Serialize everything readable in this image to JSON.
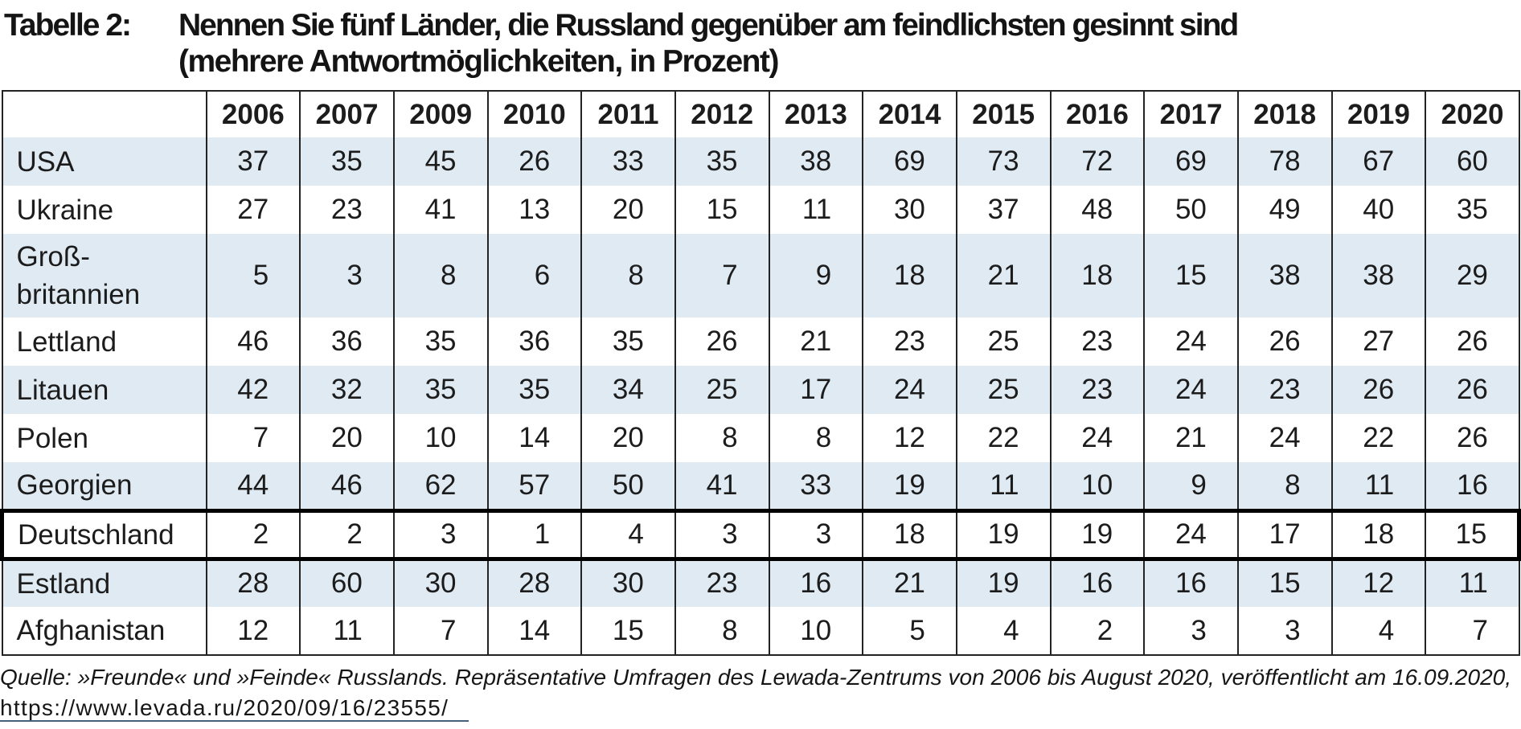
{
  "caption": {
    "label": "Tabelle 2:",
    "line1": "Nennen Sie fünf Länder, die Russland gegenüber am feindlichsten gesinnt sind",
    "line2": "(mehrere Antwortmöglichkeiten, in Prozent)"
  },
  "source": {
    "text": "Quelle: »Freunde« und »Feinde« Russlands. Repräsentative Umfragen des Lewada-Zentrums von 2006 bis August 2020, veröffentlicht am 16.09.2020,",
    "url": "https://www.levada.ru/2020/09/16/23555/"
  },
  "colors": {
    "row_shading": "#dfeaf3",
    "grid_line": "#232323",
    "highlight_border": "#000000",
    "link_underline": "#44607a",
    "text": "#1a1a1a"
  },
  "chart_data": {
    "type": "table",
    "title": "Tabelle 2: Nennen Sie fünf Länder, die Russland gegenüber am feindlichsten gesinnt sind (mehrere Antwortmöglichkeiten, in Prozent)",
    "unit": "Prozent",
    "columns": [
      "2006",
      "2007",
      "2009",
      "2010",
      "2011",
      "2012",
      "2013",
      "2014",
      "2015",
      "2016",
      "2017",
      "2018",
      "2019",
      "2020"
    ],
    "rows": [
      {
        "label": "USA",
        "values": [
          37,
          35,
          45,
          26,
          33,
          35,
          38,
          69,
          73,
          72,
          69,
          78,
          67,
          60
        ],
        "highlighted": false
      },
      {
        "label": "Ukraine",
        "values": [
          27,
          23,
          41,
          13,
          20,
          15,
          11,
          30,
          37,
          48,
          50,
          49,
          40,
          35
        ],
        "highlighted": false
      },
      {
        "label": "Groß-\nbritannien",
        "values": [
          5,
          3,
          8,
          6,
          8,
          7,
          9,
          18,
          21,
          18,
          15,
          38,
          38,
          29
        ],
        "highlighted": false
      },
      {
        "label": "Lettland",
        "values": [
          46,
          36,
          35,
          36,
          35,
          26,
          21,
          23,
          25,
          23,
          24,
          26,
          27,
          26
        ],
        "highlighted": false
      },
      {
        "label": "Litauen",
        "values": [
          42,
          32,
          35,
          35,
          34,
          25,
          17,
          24,
          25,
          23,
          24,
          23,
          26,
          26
        ],
        "highlighted": false
      },
      {
        "label": "Polen",
        "values": [
          7,
          20,
          10,
          14,
          20,
          8,
          8,
          12,
          22,
          24,
          21,
          24,
          22,
          26
        ],
        "highlighted": false
      },
      {
        "label": "Georgien",
        "values": [
          44,
          46,
          62,
          57,
          50,
          41,
          33,
          19,
          11,
          10,
          9,
          8,
          11,
          16
        ],
        "highlighted": false
      },
      {
        "label": "Deutschland",
        "values": [
          2,
          2,
          3,
          1,
          4,
          3,
          3,
          18,
          19,
          19,
          24,
          17,
          18,
          15
        ],
        "highlighted": true
      },
      {
        "label": "Estland",
        "values": [
          28,
          60,
          30,
          28,
          30,
          23,
          16,
          21,
          19,
          16,
          16,
          15,
          12,
          11
        ],
        "highlighted": false
      },
      {
        "label": "Afghanistan",
        "values": [
          12,
          11,
          7,
          14,
          15,
          8,
          10,
          5,
          4,
          2,
          3,
          3,
          4,
          7
        ],
        "highlighted": false
      }
    ],
    "source": "Quelle: »Freunde« und »Feinde« Russlands. Repräsentative Umfragen des Lewada-Zentrums von 2006 bis August 2020, veröffentlicht am 16.09.2020, https://www.levada.ru/2020/09/16/23555/"
  }
}
